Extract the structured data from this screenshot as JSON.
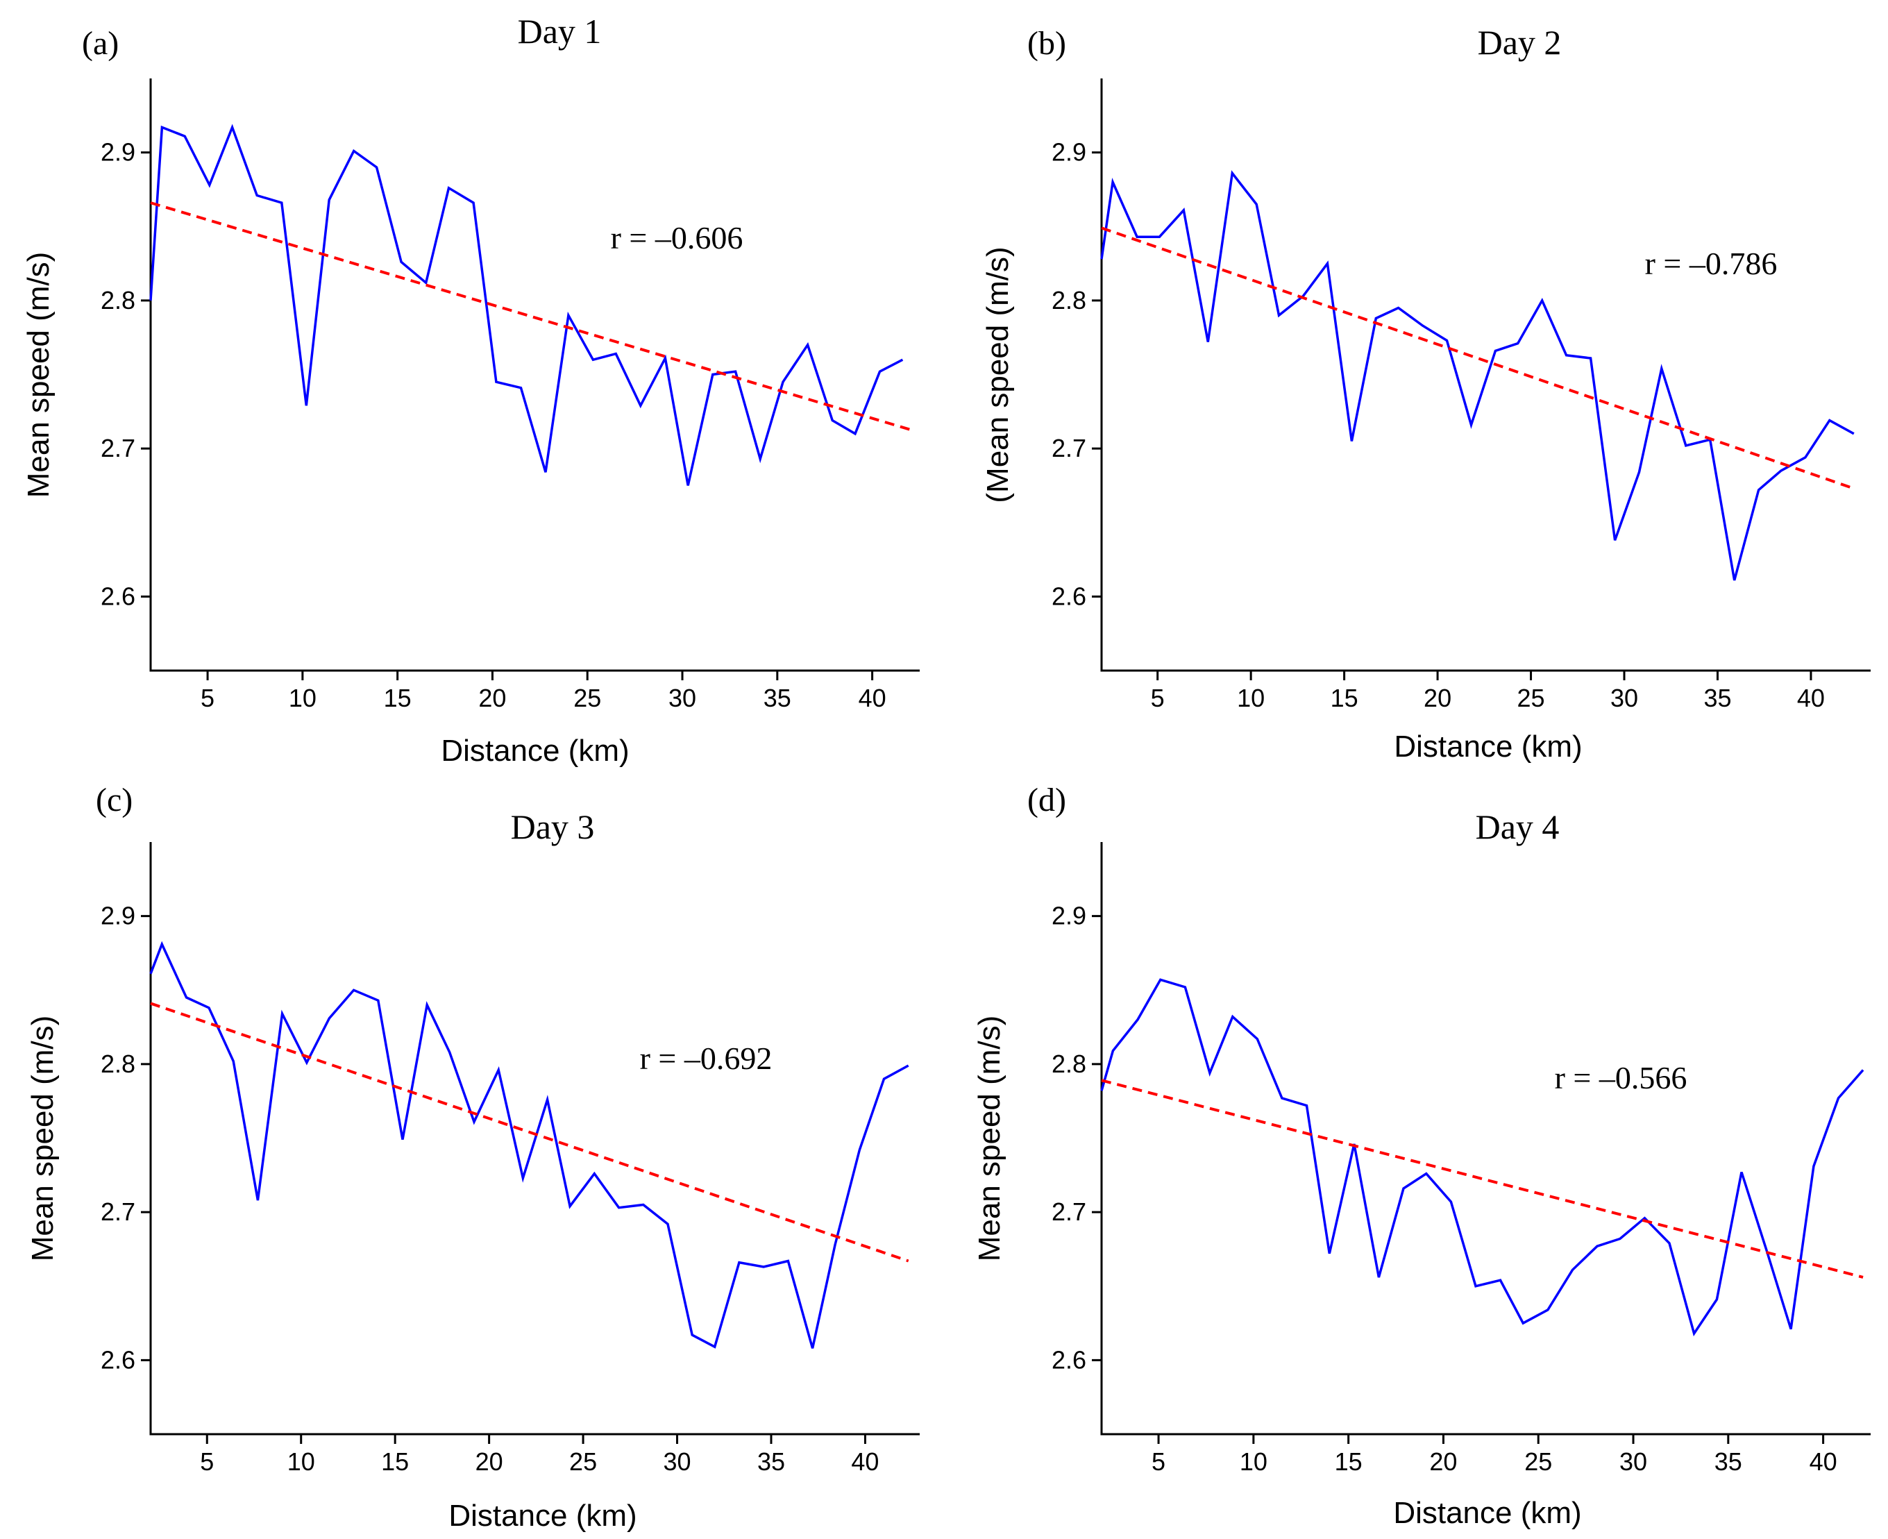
{
  "chart_data": [
    {
      "type": "line",
      "panel_label": "(a)",
      "title": "Day 1",
      "xlabel": "Distance (km)",
      "ylabel": "Mean speed (m/s)",
      "xlim": [
        2,
        42.5
      ],
      "ylim": [
        2.55,
        2.95
      ],
      "xticks": [
        5,
        10,
        15,
        20,
        25,
        30,
        35,
        40
      ],
      "yticks": [
        2.6,
        2.7,
        2.8,
        2.9
      ],
      "annotation": "r = –0.606",
      "series": [
        {
          "name": "Mean speed",
          "color": "#0000ff",
          "x": [
            2,
            2.6,
            3.8,
            5.1,
            6.3,
            7.6,
            8.9,
            10.2,
            11.4,
            12.7,
            13.9,
            15.2,
            16.5,
            17.7,
            19,
            20.2,
            21.5,
            22.8,
            24,
            25.3,
            26.5,
            27.8,
            29.1,
            30.3,
            31.6,
            32.8,
            34.1,
            35.3,
            36.6,
            37.9,
            39.1,
            40.4,
            41.6
          ],
          "values": [
            2.8,
            2.917,
            2.911,
            2.878,
            2.917,
            2.871,
            2.866,
            2.729,
            2.868,
            2.901,
            2.89,
            2.826,
            2.812,
            2.876,
            2.866,
            2.745,
            2.741,
            2.684,
            2.79,
            2.76,
            2.764,
            2.729,
            2.761,
            2.675,
            2.75,
            2.752,
            2.693,
            2.745,
            2.77,
            2.719,
            2.71,
            2.752,
            2.76
          ]
        }
      ],
      "trend": {
        "name": "Linear fit",
        "color": "#ff0000",
        "x": [
          2,
          42.2
        ],
        "values": [
          2.866,
          2.712
        ]
      }
    },
    {
      "type": "line",
      "panel_label": "(b)",
      "title": "Day 2",
      "xlabel": "Distance (km)",
      "ylabel": "(Mean speed (m/s)",
      "xlim": [
        2,
        43.2
      ],
      "ylim": [
        2.55,
        2.95
      ],
      "xticks": [
        5,
        10,
        15,
        20,
        25,
        30,
        35,
        40
      ],
      "yticks": [
        2.6,
        2.7,
        2.8,
        2.9
      ],
      "annotation": "r = –0.786",
      "series": [
        {
          "name": "Mean speed",
          "color": "#0000ff",
          "x": [
            2,
            2.6,
            3.9,
            5.1,
            6.4,
            7.7,
            9,
            10.3,
            11.5,
            12.8,
            14.1,
            15.4,
            16.7,
            17.9,
            19.2,
            20.5,
            21.8,
            23.1,
            24.3,
            25.6,
            26.9,
            28.2,
            29.5,
            30.8,
            32,
            33.3,
            34.6,
            35.9,
            37.2,
            38.4,
            39.7,
            41,
            42.3
          ],
          "values": [
            2.828,
            2.88,
            2.843,
            2.843,
            2.861,
            2.772,
            2.886,
            2.865,
            2.79,
            2.803,
            2.825,
            2.705,
            2.788,
            2.795,
            2.783,
            2.773,
            2.716,
            2.766,
            2.771,
            2.8,
            2.763,
            2.761,
            2.638,
            2.684,
            2.754,
            2.702,
            2.706,
            2.611,
            2.672,
            2.685,
            2.694,
            2.719,
            2.71
          ]
        }
      ],
      "trend": {
        "name": "Linear fit",
        "color": "#ff0000",
        "x": [
          2,
          42.3
        ],
        "values": [
          2.849,
          2.673
        ]
      }
    },
    {
      "type": "line",
      "panel_label": "(c)",
      "title": "Day 3",
      "xlabel": "Distance (km)",
      "ylabel": "Mean speed (m/s)",
      "xlim": [
        2,
        42.9
      ],
      "ylim": [
        2.55,
        2.95
      ],
      "xticks": [
        5,
        10,
        15,
        20,
        25,
        30,
        35,
        40
      ],
      "yticks": [
        2.6,
        2.7,
        2.8,
        2.9
      ],
      "annotation": "r = –0.692",
      "series": [
        {
          "name": "Mean speed",
          "color": "#0000ff",
          "x": [
            2,
            2.6,
            3.9,
            5.1,
            6.4,
            7.7,
            9,
            10.3,
            11.5,
            12.8,
            14.1,
            15.4,
            16.7,
            17.9,
            19.2,
            20.5,
            21.8,
            23.1,
            24.3,
            25.6,
            26.9,
            28.2,
            29.5,
            30.8,
            32,
            33.3,
            34.6,
            35.9,
            37.2,
            38.4,
            39.7,
            41,
            42.3
          ],
          "values": [
            2.861,
            2.881,
            2.845,
            2.838,
            2.802,
            2.708,
            2.834,
            2.801,
            2.831,
            2.85,
            2.843,
            2.749,
            2.84,
            2.808,
            2.761,
            2.796,
            2.723,
            2.776,
            2.704,
            2.726,
            2.703,
            2.705,
            2.692,
            2.617,
            2.609,
            2.666,
            2.663,
            2.667,
            2.608,
            2.678,
            2.742,
            2.79,
            2.799
          ]
        }
      ],
      "trend": {
        "name": "Linear fit",
        "color": "#ff0000",
        "x": [
          2,
          42.3
        ],
        "values": [
          2.841,
          2.667
        ]
      }
    },
    {
      "type": "line",
      "panel_label": "(d)",
      "title": "Day 4",
      "xlabel": "Distance (km)",
      "ylabel": "Mean speed (m/s)",
      "xlim": [
        2,
        42.5
      ],
      "ylim": [
        2.55,
        2.95
      ],
      "xticks": [
        5,
        10,
        15,
        20,
        25,
        30,
        35,
        40
      ],
      "yticks": [
        2.6,
        2.7,
        2.8,
        2.9
      ],
      "annotation": "r = –0.566",
      "series": [
        {
          "name": "Mean speed",
          "color": "#0000ff",
          "x": [
            2,
            2.6,
            3.9,
            5.1,
            6.4,
            7.7,
            8.9,
            10.2,
            11.5,
            12.8,
            14,
            15.3,
            16.6,
            17.9,
            19.1,
            20.4,
            21.7,
            23,
            24.2,
            25.5,
            26.8,
            28.1,
            29.3,
            30.6,
            31.9,
            33.2,
            34.4,
            35.7,
            37,
            38.3,
            39.5,
            40.8,
            42.1
          ],
          "values": [
            2.782,
            2.809,
            2.83,
            2.857,
            2.852,
            2.794,
            2.832,
            2.817,
            2.777,
            2.772,
            2.672,
            2.746,
            2.656,
            2.716,
            2.726,
            2.707,
            2.65,
            2.654,
            2.625,
            2.634,
            2.661,
            2.677,
            2.682,
            2.696,
            2.679,
            2.618,
            2.641,
            2.727,
            2.675,
            2.621,
            2.731,
            2.777,
            2.796
          ]
        }
      ],
      "trend": {
        "name": "Linear fit",
        "color": "#ff0000",
        "x": [
          2,
          42.1
        ],
        "values": [
          2.789,
          2.656
        ]
      }
    }
  ]
}
